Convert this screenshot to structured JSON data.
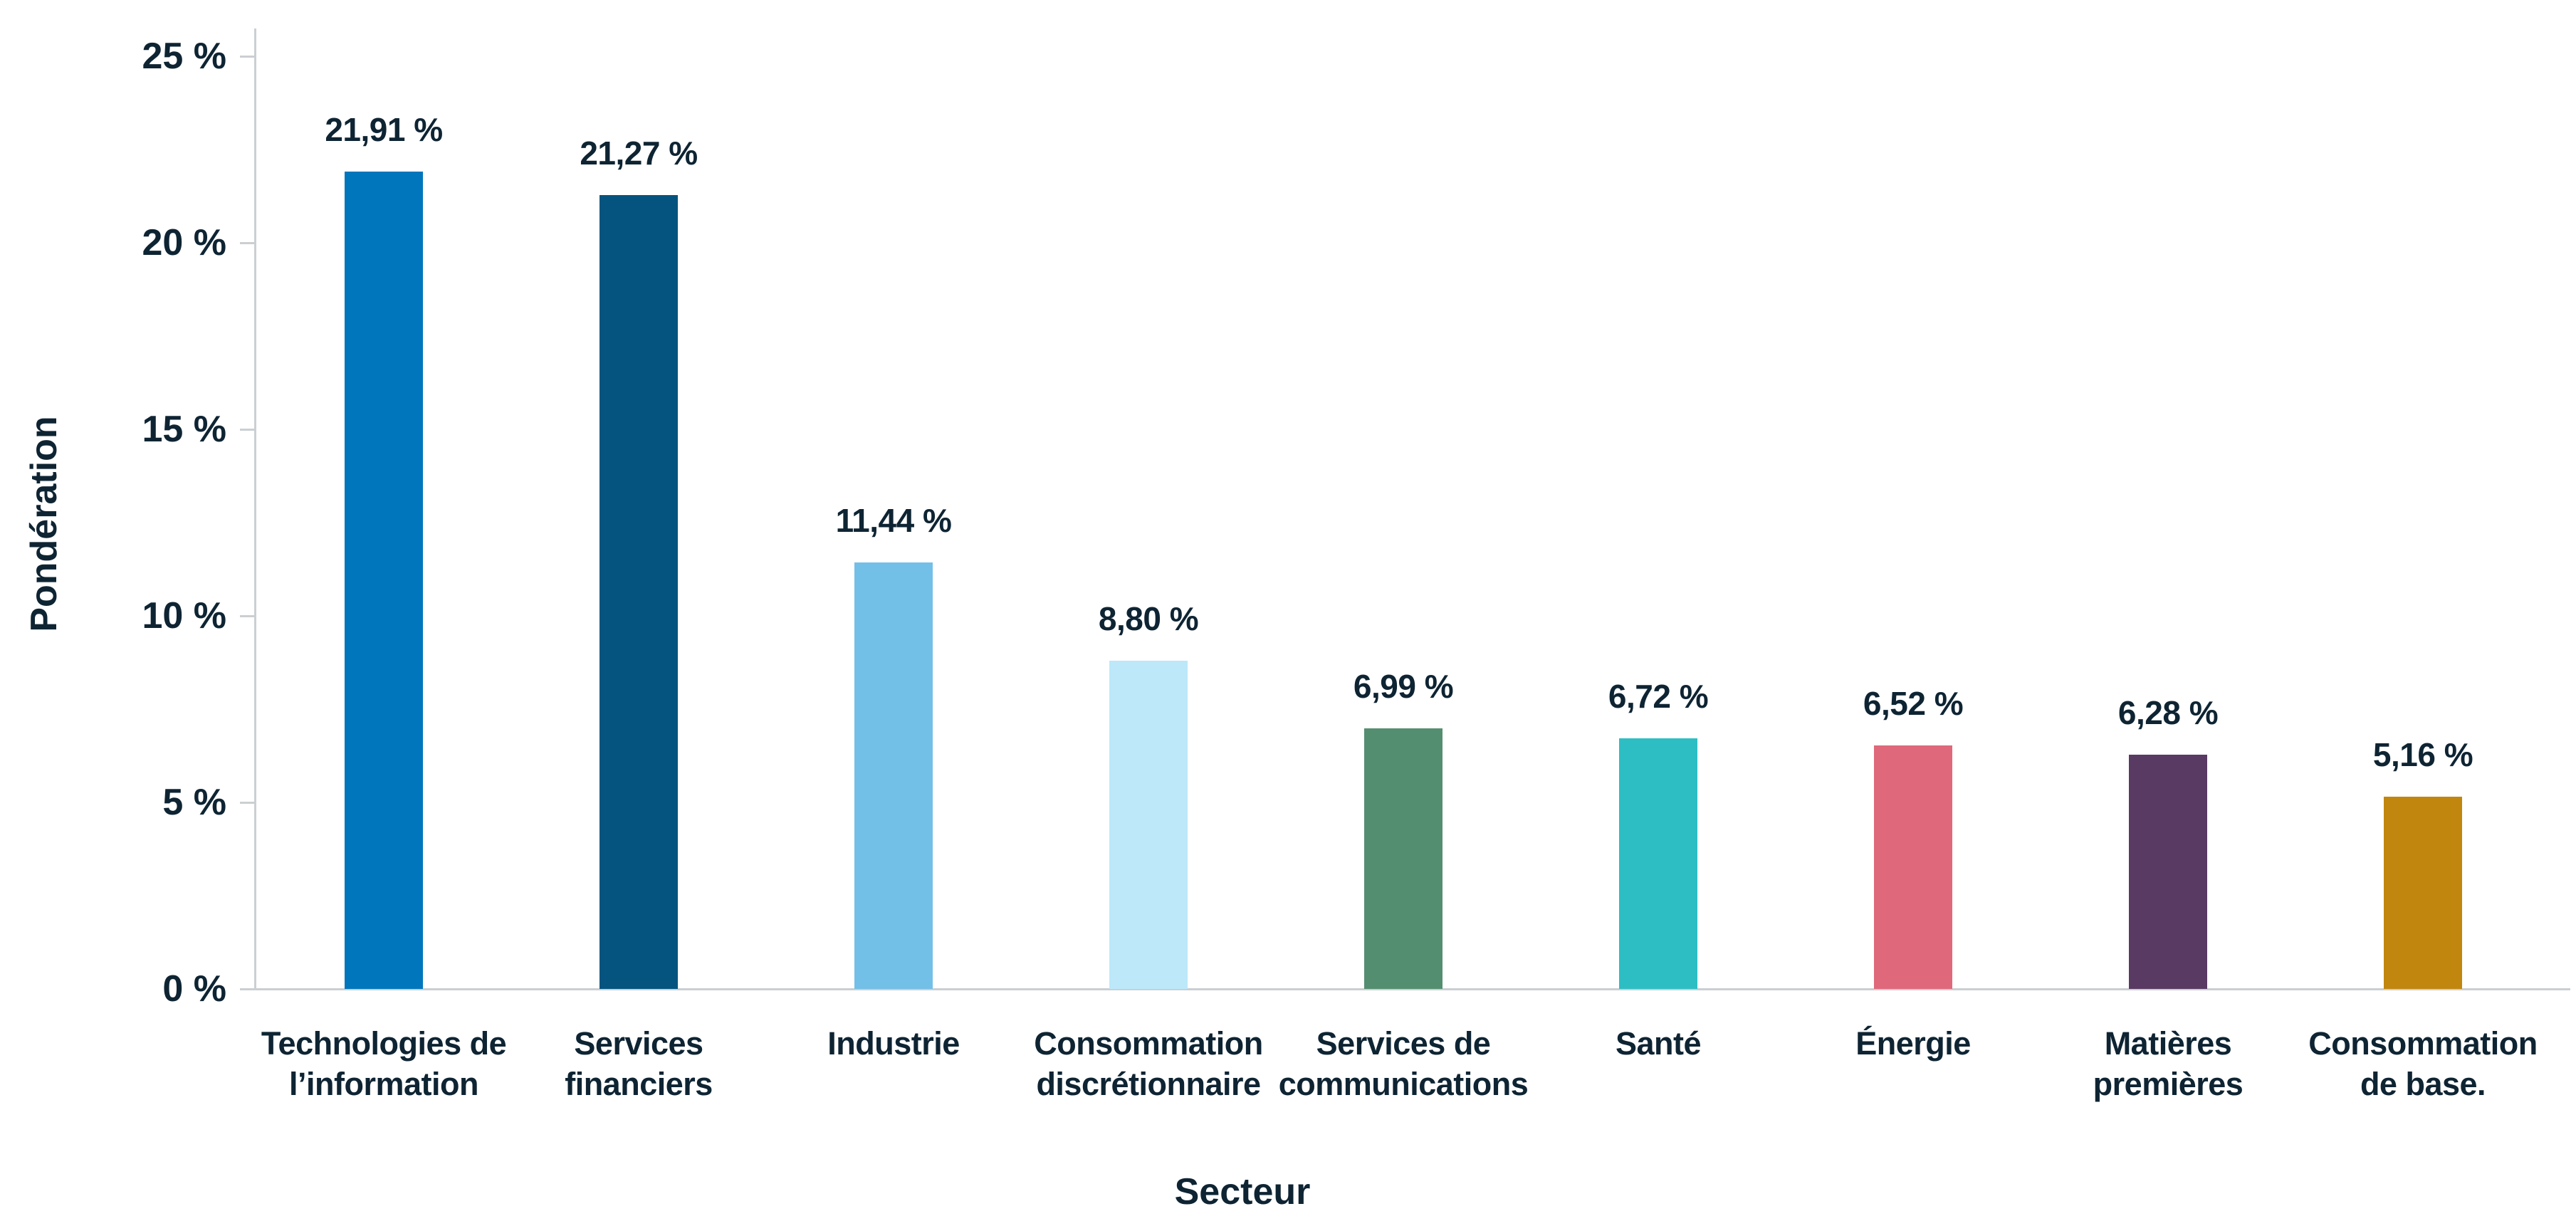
{
  "colors": {
    "background": "#ffffff",
    "axis": "#cbcfd2",
    "text": "#0e2433"
  },
  "chart_data": {
    "type": "bar",
    "title": "",
    "xlabel": "Secteur",
    "ylabel": "Pondération",
    "ylim": [
      0,
      25
    ],
    "grid": false,
    "legend": null,
    "y_ticks": [
      {
        "value": 25,
        "label": "25 %"
      },
      {
        "value": 20,
        "label": "20 %"
      },
      {
        "value": 15,
        "label": "15 %"
      },
      {
        "value": 10,
        "label": "10 %"
      },
      {
        "value": 5,
        "label": "5 %"
      },
      {
        "value": 0,
        "label": "0 %"
      }
    ],
    "categories": [
      {
        "slug": "technologies-information",
        "lines": [
          "Technologies de",
          "l’information"
        ]
      },
      {
        "slug": "services-financiers",
        "lines": [
          "Services",
          "financiers"
        ]
      },
      {
        "slug": "industrie",
        "lines": [
          "Industrie"
        ]
      },
      {
        "slug": "consommation-discretionnaire",
        "lines": [
          "Consommation",
          "discrétionnaire"
        ]
      },
      {
        "slug": "services-de-communications",
        "lines": [
          "Services de",
          "communications"
        ]
      },
      {
        "slug": "sante",
        "lines": [
          "Santé"
        ]
      },
      {
        "slug": "energie",
        "lines": [
          "Énergie"
        ]
      },
      {
        "slug": "matieres-premieres",
        "lines": [
          "Matières",
          "premières"
        ]
      },
      {
        "slug": "consommation-de-base",
        "lines": [
          "Consommation",
          "de base."
        ]
      }
    ],
    "values": [
      21.91,
      21.27,
      11.44,
      8.8,
      6.99,
      6.72,
      6.52,
      6.28,
      5.16
    ],
    "value_labels": [
      "21,91 %",
      "21,27 %",
      "11,44 %",
      "8,80 %",
      "6,99 %",
      "6,72 %",
      "6,52 %",
      "6,28 %",
      "5,16 %"
    ],
    "bar_colors": [
      "#0076bd",
      "#05547f",
      "#72bfe7",
      "#bce8fa",
      "#548e70",
      "#2dbec3",
      "#df687b",
      "#593a63",
      "#c1860d"
    ]
  }
}
